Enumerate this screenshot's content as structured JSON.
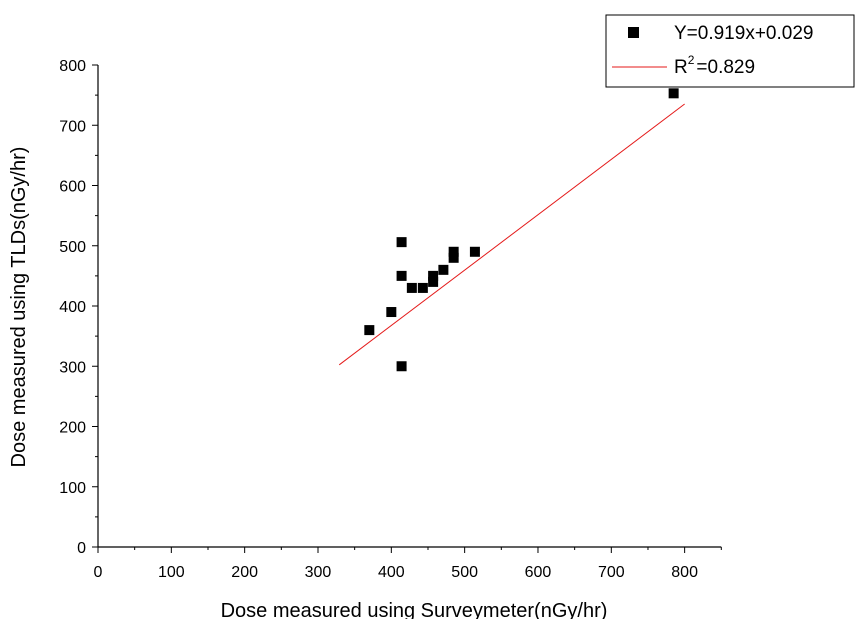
{
  "chart_data": {
    "type": "scatter",
    "xlabel": "Dose measured using Surveymeter(nGy/hr)",
    "ylabel": "Dose measured using TLDs(nGy/hr)",
    "xlim": [
      0,
      850
    ],
    "ylim": [
      0,
      800
    ],
    "xticks": [
      "0",
      "100",
      "200",
      "300",
      "400",
      "500",
      "600",
      "700",
      "800"
    ],
    "yticks": [
      "0",
      "100",
      "200",
      "300",
      "400",
      "500",
      "600",
      "700",
      "800"
    ],
    "grid": false,
    "legend_position": "top-right",
    "series": [
      {
        "marker": "square",
        "color": "#000000",
        "points": [
          {
            "x": 370,
            "y": 360
          },
          {
            "x": 400,
            "y": 390
          },
          {
            "x": 414,
            "y": 300
          },
          {
            "x": 414,
            "y": 450
          },
          {
            "x": 414,
            "y": 506
          },
          {
            "x": 428,
            "y": 430
          },
          {
            "x": 443,
            "y": 430
          },
          {
            "x": 457,
            "y": 440
          },
          {
            "x": 457,
            "y": 450
          },
          {
            "x": 471,
            "y": 460
          },
          {
            "x": 485,
            "y": 480
          },
          {
            "x": 485,
            "y": 490
          },
          {
            "x": 514,
            "y": 490
          },
          {
            "x": 785,
            "y": 753
          }
        ]
      }
    ],
    "fit_line": {
      "color": "#e41a1a",
      "slope": 0.919,
      "intercept": 0.029,
      "x_range": [
        329,
        800
      ]
    },
    "legend": {
      "scatter_label": "Y=0.919x+0.029",
      "line_label_base": "R",
      "line_label_sup": "2",
      "line_label_rest": "=0.829"
    }
  }
}
